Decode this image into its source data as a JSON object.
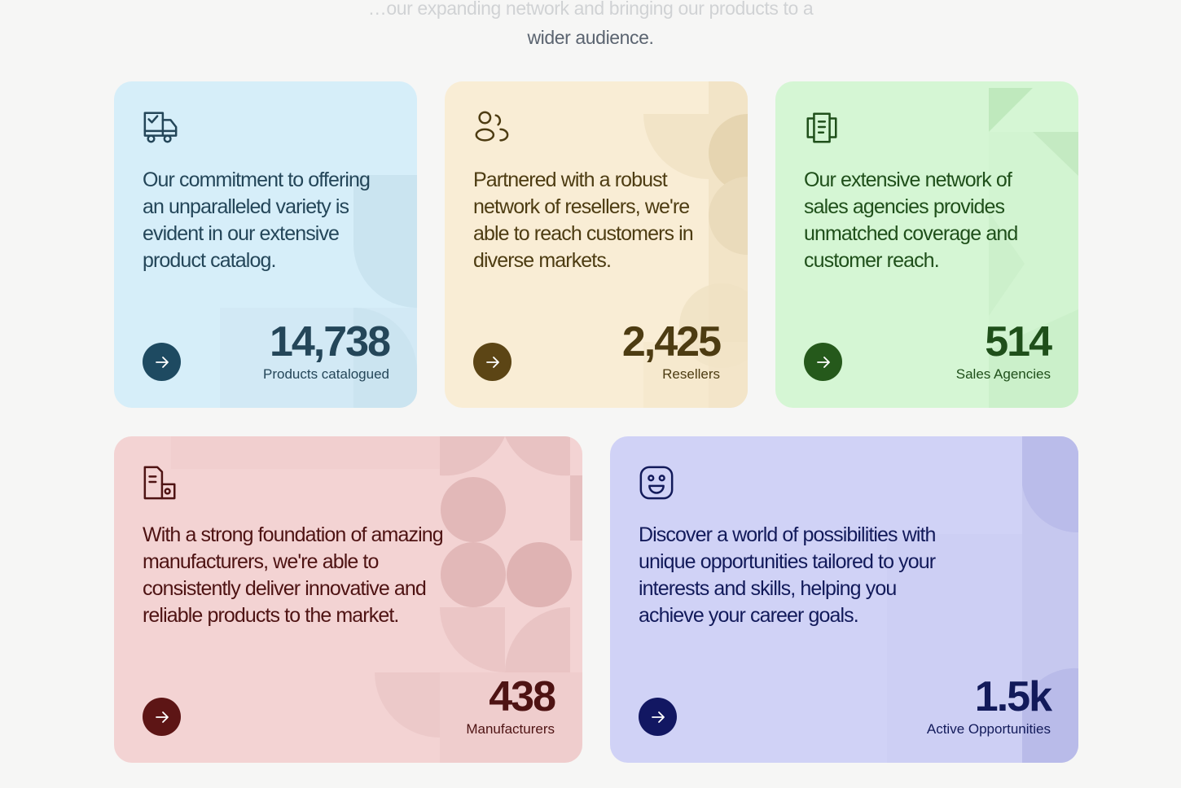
{
  "intro": {
    "line_cut": "…our expanding network and bringing our products to a",
    "line": "wider audience."
  },
  "cards": [
    {
      "id": "products",
      "icon": "delivery-truck-icon",
      "text": "Our commitment to offering an unparalleled variety is evident in our extensive product catalog.",
      "number": "14,738",
      "label": "Products catalogued",
      "accent": "#1e4a61",
      "background": "#d6eef9"
    },
    {
      "id": "resellers",
      "icon": "users-icon",
      "text": "Partnered with a robust network of resellers, we're able to reach customers in diverse markets.",
      "number": "2,425",
      "label": "Resellers",
      "accent": "#5c4515",
      "background": "#f9edd5"
    },
    {
      "id": "agencies",
      "icon": "documents-icon",
      "text": "Our extensive network of sales agencies provides unmatched coverage and customer reach.",
      "number": "514",
      "label": "Sales Agencies",
      "accent": "#25591b",
      "background": "#d5f6d4"
    },
    {
      "id": "manufacturers",
      "icon": "factory-icon",
      "text": "With a strong foundation of amazing manufacturers, we're able to consistently deliver innovative and reliable products to the market.",
      "number": "438",
      "label": "Manufacturers",
      "accent": "#5d1515",
      "background": "#f3d3d3"
    },
    {
      "id": "opportunities",
      "icon": "smiley-face-icon",
      "text": "Discover a world of possibilities with unique opportunities tailored to your interests and skills, helping you achieve your career goals.",
      "number": "1.5k",
      "label": "Active Opportunities",
      "accent": "#121762",
      "background": "#d0d2f6"
    }
  ]
}
